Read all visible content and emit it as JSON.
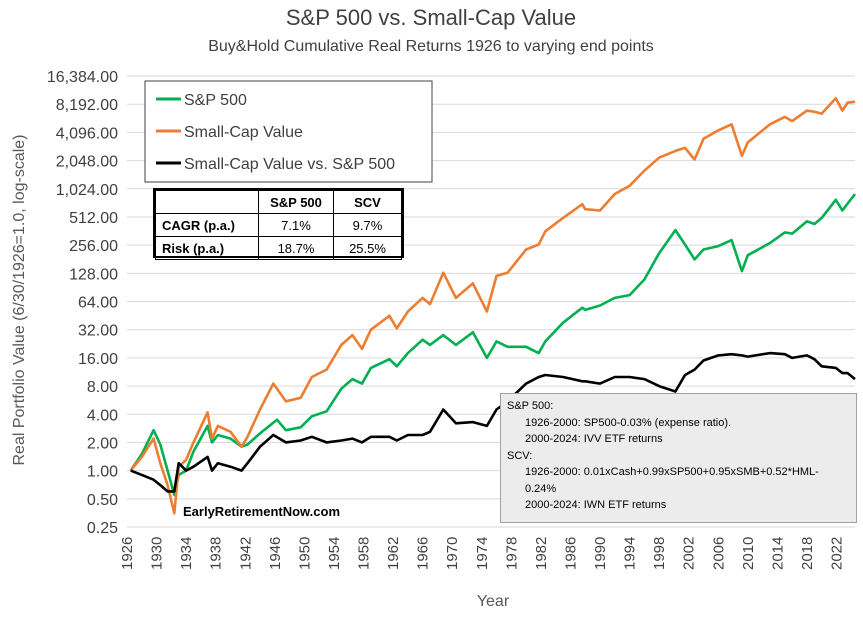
{
  "chart_data": {
    "type": "line",
    "title": "S&P 500 vs. Small-Cap Value",
    "subtitle": "Buy&Hold Cumulative Real Returns 1926 to varying end points",
    "xlabel": "Year",
    "ylabel": "Real Portfolio Value (6/30/1926=1.0, log-scale)",
    "y_scale": "log2",
    "ylim": [
      0.25,
      16384
    ],
    "xlim": [
      1926,
      2024.5
    ],
    "y_ticks": [
      "0.25",
      "0.50",
      "1.00",
      "2.00",
      "4.00",
      "8.00",
      "16.00",
      "32.00",
      "64.00",
      "128.00",
      "256.00",
      "512.00",
      "1,024.00",
      "2,048.00",
      "4,096.00",
      "8,192.00",
      "16,384.00"
    ],
    "x_ticks": [
      "1926",
      "1930",
      "1934",
      "1938",
      "1942",
      "1946",
      "1950",
      "1954",
      "1958",
      "1962",
      "1966",
      "1970",
      "1974",
      "1978",
      "1982",
      "1986",
      "1990",
      "1994",
      "1998",
      "2002",
      "2006",
      "2010",
      "2014",
      "2018",
      "2022"
    ],
    "grid": "horizontal",
    "legend_position": "top-left",
    "series": [
      {
        "name": "S&P 500",
        "color": "#00b050",
        "x": [
          1926.5,
          1928,
          1929.6,
          1930.5,
          1931.5,
          1932.4,
          1933,
          1934,
          1935,
          1936.9,
          1937.5,
          1938.3,
          1940,
          1941.5,
          1942.3,
          1944,
          1946.3,
          1947.5,
          1949.5,
          1951,
          1953,
          1955,
          1956.5,
          1957.8,
          1959,
          1961.5,
          1962.5,
          1964,
          1966,
          1967,
          1968.8,
          1970.5,
          1972.8,
          1974.7,
          1976,
          1977.5,
          1980,
          1981.7,
          1982.6,
          1985,
          1987.6,
          1988,
          1990,
          1992,
          1994,
          1996,
          1998,
          2000.2,
          2001.5,
          2002.8,
          2004,
          2006,
          2007.8,
          2009.2,
          2010,
          2013,
          2015,
          2016,
          2018,
          2019,
          2020,
          2021.9,
          2022.8,
          2023.5,
          2024.5
        ],
        "values": [
          1.0,
          1.5,
          2.7,
          1.9,
          1.0,
          0.55,
          0.9,
          1.0,
          1.6,
          3.0,
          2.0,
          2.4,
          2.2,
          1.8,
          1.9,
          2.5,
          3.5,
          2.7,
          2.9,
          3.8,
          4.3,
          7.5,
          9.5,
          8.5,
          12.5,
          15.5,
          13.0,
          18.0,
          25.0,
          22.0,
          28.0,
          22.0,
          30.0,
          16.0,
          24.0,
          21.0,
          21.0,
          18.0,
          24.0,
          38.0,
          55.0,
          52.0,
          58.0,
          70.0,
          75.0,
          110.0,
          210.0,
          370.0,
          260.0,
          180.0,
          230.0,
          250.0,
          290.0,
          135.0,
          200.0,
          270.0,
          350.0,
          340.0,
          460.0,
          430.0,
          500.0,
          780.0,
          600.0,
          710.0,
          900.0
        ]
      },
      {
        "name": "Small-Cap Value",
        "color": "#ed7d31",
        "x": [
          1926.5,
          1928,
          1929.6,
          1930.5,
          1931.5,
          1932.4,
          1933,
          1934,
          1935,
          1936.9,
          1937.5,
          1938.3,
          1940,
          1941.5,
          1942.3,
          1944,
          1945.8,
          1947.5,
          1949.5,
          1951,
          1953,
          1955,
          1956.5,
          1957.8,
          1959,
          1961.5,
          1962.5,
          1964,
          1966,
          1967,
          1968.8,
          1970.5,
          1972.8,
          1974.7,
          1976,
          1977.5,
          1980,
          1981.7,
          1982.6,
          1985,
          1987.6,
          1988,
          1990,
          1992,
          1994,
          1996,
          1998,
          2000.2,
          2001.5,
          2002.8,
          2004,
          2006,
          2007.8,
          2009.2,
          2010,
          2013,
          2015,
          2016,
          2018,
          2019,
          2020,
          2021.9,
          2022.8,
          2023.5,
          2024.5
        ],
        "values": [
          1.0,
          1.4,
          2.2,
          1.2,
          0.7,
          0.35,
          1.1,
          1.3,
          2.0,
          4.2,
          2.2,
          3.0,
          2.6,
          1.8,
          2.3,
          4.5,
          8.5,
          5.5,
          6.0,
          10.0,
          12.0,
          22.0,
          28.0,
          20.0,
          32.0,
          45.0,
          33.0,
          50.0,
          70.0,
          60.0,
          130.0,
          70.0,
          100.0,
          50.0,
          120.0,
          130.0,
          230.0,
          260.0,
          360.0,
          500.0,
          700.0,
          620.0,
          600.0,
          900.0,
          1100.0,
          1600.0,
          2200.0,
          2600.0,
          2800.0,
          2100.0,
          3500.0,
          4300.0,
          5000.0,
          2300.0,
          3200.0,
          5000.0,
          6000.0,
          5400.0,
          7000.0,
          6800.0,
          6500.0,
          9500.0,
          7000.0,
          8500.0,
          8700.0
        ]
      },
      {
        "name": "Small-Cap Value vs. S&P 500",
        "color": "#000000",
        "x": [
          1926.5,
          1928,
          1929.6,
          1930.5,
          1931.5,
          1932.4,
          1933,
          1934,
          1935,
          1936.9,
          1937.5,
          1938.3,
          1940,
          1941.5,
          1942.3,
          1944,
          1945.8,
          1947.5,
          1949.5,
          1951,
          1953,
          1955,
          1956.5,
          1957.8,
          1959,
          1961.5,
          1962.5,
          1964,
          1966,
          1967,
          1968.8,
          1970.5,
          1972.8,
          1974.7,
          1976,
          1977.5,
          1980,
          1981.7,
          1982.6,
          1985,
          1987.6,
          1988,
          1990,
          1992,
          1994,
          1996,
          1998,
          2000.2,
          2001.5,
          2002.8,
          2004,
          2006,
          2007.8,
          2009.2,
          2010,
          2013,
          2015,
          2016,
          2018,
          2019,
          2020,
          2021.9,
          2022.8,
          2023.5,
          2024.5
        ],
        "values": [
          1.0,
          0.9,
          0.8,
          0.7,
          0.6,
          0.6,
          1.2,
          1.0,
          1.1,
          1.4,
          1.0,
          1.2,
          1.1,
          1.0,
          1.2,
          1.8,
          2.4,
          2.0,
          2.1,
          2.3,
          2.0,
          2.1,
          2.2,
          2.0,
          2.3,
          2.3,
          2.1,
          2.4,
          2.4,
          2.6,
          4.5,
          3.2,
          3.3,
          3.0,
          4.5,
          5.5,
          8.5,
          10.0,
          10.5,
          10.0,
          9.0,
          9.0,
          8.5,
          10.0,
          10.0,
          9.5,
          8.0,
          7.0,
          10.5,
          12.0,
          15.0,
          17.0,
          17.5,
          17.0,
          16.5,
          18.0,
          17.5,
          16.0,
          17.0,
          15.5,
          13.0,
          12.5,
          11.0,
          11.0,
          9.5
        ]
      }
    ],
    "stats_table": {
      "columns": [
        "",
        "S&P 500",
        "SCV"
      ],
      "rows": [
        {
          "label": "CAGR (p.a.)",
          "values": [
            "7.1%",
            "9.7%"
          ]
        },
        {
          "label": "Risk (p.a.)",
          "values": [
            "18.7%",
            "25.5%"
          ]
        }
      ]
    }
  },
  "notes": {
    "line1": "S&P 500:",
    "line2": "1926-2000: SP500-0.03% (expense ratio).",
    "line3": "2000-2024: IVV ETF returns",
    "line4": "SCV:",
    "line5": "1926-2000: 0.01xCash+0.99xSP500+0.95xSMB+0.52*HML-0.24%",
    "line6": "2000-2024: IWN ETF returns"
  },
  "watermark": "EarlyRetirementNow.com"
}
